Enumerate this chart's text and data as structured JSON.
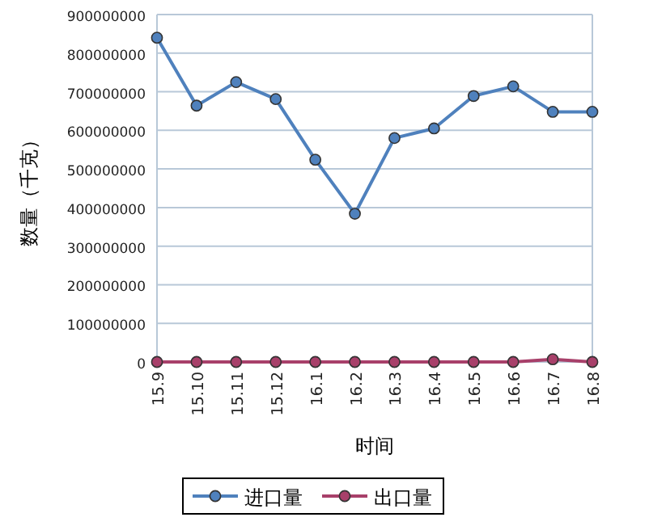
{
  "chart_data": {
    "type": "line",
    "xlabel": "时间",
    "ylabel": "数量（千克）",
    "categories": [
      "15.9",
      "15.10",
      "15.11",
      "15.12",
      "16.1",
      "16.2",
      "16.3",
      "16.4",
      "16.5",
      "16.6",
      "16.7",
      "16.8"
    ],
    "series": [
      {
        "name": "进口量",
        "color": "#4f81bd",
        "values": [
          840000000,
          664000000,
          725000000,
          681000000,
          524000000,
          384000000,
          580000000,
          605000000,
          689000000,
          714000000,
          648000000,
          648000000
        ]
      },
      {
        "name": "出口量",
        "color": "#a8406a",
        "values": [
          0,
          0,
          0,
          0,
          0,
          0,
          0,
          0,
          0,
          0,
          7000000,
          0
        ]
      }
    ],
    "ylim": [
      0,
      900000000
    ],
    "yticks": [
      0,
      100000000,
      200000000,
      300000000,
      400000000,
      500000000,
      600000000,
      700000000,
      800000000,
      900000000
    ],
    "grid": "y",
    "legend": "bottom",
    "marker": "circle",
    "line_style": "solid"
  }
}
